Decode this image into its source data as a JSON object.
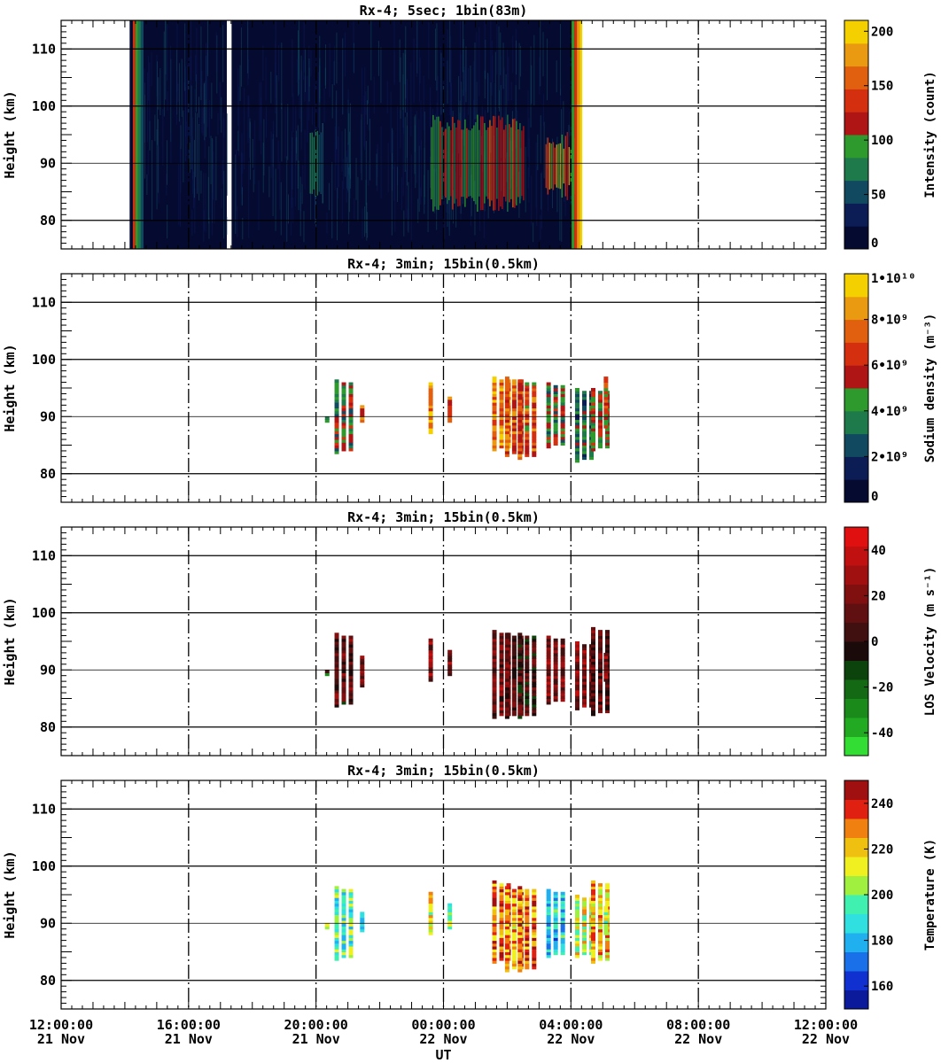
{
  "x_axis": {
    "label": "UT",
    "ticks": [
      {
        "time": "12:00:00",
        "date": "21 Nov"
      },
      {
        "time": "16:00:00",
        "date": "21 Nov"
      },
      {
        "time": "20:00:00",
        "date": "21 Nov"
      },
      {
        "time": "00:00:00",
        "date": "22 Nov"
      },
      {
        "time": "04:00:00",
        "date": "22 Nov"
      },
      {
        "time": "08:00:00",
        "date": "22 Nov"
      },
      {
        "time": "12:00:00",
        "date": "22 Nov"
      }
    ]
  },
  "chart_data": [
    {
      "type": "heatmap",
      "title": "Rx-4;  5sec; 1bin(83m)",
      "ylabel": "Height (km)",
      "ylim": [
        75,
        115
      ],
      "xlim_hours_ut": [
        12,
        36
      ],
      "y_ticks": [
        "110",
        "100",
        "90",
        "80"
      ],
      "colorbar": {
        "label": "Intensity (count)",
        "range": [
          0,
          210
        ],
        "ticks": [
          "200",
          "150",
          "100",
          "50",
          "0"
        ],
        "colors": [
          "#050a30",
          "#0c1c55",
          "#114a60",
          "#1e7a4a",
          "#2e9a2e",
          "#b01515",
          "#d43010",
          "#e06010",
          "#ea9a10",
          "#f5d000"
        ]
      },
      "data_windows_ut_hours": [
        [
          14.15,
          17.2
        ],
        [
          17.35,
          28.35
        ]
      ],
      "layer_blocks": [
        {
          "x0": 19.8,
          "x1": 20.2,
          "y0": 84,
          "y1": 96,
          "level": 0.45
        },
        {
          "x0": 23.6,
          "x1": 26.5,
          "y0": 83,
          "y1": 97,
          "level": 0.6
        },
        {
          "x0": 27.2,
          "x1": 28.2,
          "y0": 85,
          "y1": 94,
          "level": 0.75
        }
      ]
    },
    {
      "type": "heatmap",
      "title": "Rx-4; 3min; 15bin(0.5km)",
      "ylabel": "Height (km)",
      "ylim": [
        75,
        115
      ],
      "y_ticks": [
        "110",
        "100",
        "90",
        "80"
      ],
      "colorbar": {
        "label": "Sodium density (m⁻³)",
        "range": [
          0,
          10000000000.0
        ],
        "ticks": [
          "1•10¹⁰",
          "8•10⁹",
          "6•10⁹",
          "4•10⁹",
          "2•10⁹",
          "0"
        ],
        "colors": [
          "#050a30",
          "#0c1c55",
          "#114a60",
          "#1e7a4a",
          "#2e9a2e",
          "#b01515",
          "#d43010",
          "#e06010",
          "#ea9a10",
          "#f5d000"
        ]
      },
      "columns": [
        {
          "t": 20.35,
          "h0": 89,
          "h1": 90,
          "v": 0.45
        },
        {
          "t": 20.65,
          "h0": 83.5,
          "h1": 96.5,
          "v": 0.45
        },
        {
          "t": 21.45,
          "h0": 89,
          "h1": 92,
          "v": 0.7
        },
        {
          "t": 23.6,
          "h0": 87,
          "h1": 96,
          "v": 0.85
        },
        {
          "t": 24.2,
          "h0": 89,
          "h1": 93.5,
          "v": 0.7
        },
        {
          "t": 25.6,
          "h0": 84,
          "h1": 97,
          "v": 0.8
        },
        {
          "t": 26.0,
          "h0": 83,
          "h1": 97,
          "v": 0.7
        },
        {
          "t": 26.4,
          "h0": 82.5,
          "h1": 96.5,
          "v": 0.65
        },
        {
          "t": 27.3,
          "h0": 84.5,
          "h1": 96,
          "v": 0.45
        },
        {
          "t": 28.2,
          "h0": 82,
          "h1": 95,
          "v": 0.35
        },
        {
          "t": 28.7,
          "h0": 84,
          "h1": 95,
          "v": 0.5
        },
        {
          "t": 29.1,
          "h0": 88,
          "h1": 97,
          "v": 0.6
        }
      ]
    },
    {
      "type": "heatmap",
      "title": "Rx-4; 3min; 15bin(0.5km)",
      "ylabel": "Height (km)",
      "ylim": [
        75,
        115
      ],
      "y_ticks": [
        "110",
        "100",
        "90",
        "80"
      ],
      "colorbar": {
        "label": "LOS Velocity (m s⁻¹)",
        "range": [
          -50,
          50
        ],
        "ticks": [
          "40",
          "20",
          "0",
          "-20",
          "-40"
        ],
        "colors": [
          "#33dd33",
          "#22aa22",
          "#1a8a1a",
          "#146a14",
          "#0c420c",
          "#1a0a0a",
          "#401010",
          "#601010",
          "#801010",
          "#a01010",
          "#c01010",
          "#e01010"
        ]
      },
      "columns": [
        {
          "t": 20.35,
          "h0": 89,
          "h1": 90,
          "v": 0.4
        },
        {
          "t": 20.65,
          "h0": 83.5,
          "h1": 96.5,
          "v": 0.6
        },
        {
          "t": 21.45,
          "h0": 87,
          "h1": 92.5,
          "v": 0.7
        },
        {
          "t": 23.6,
          "h0": 88,
          "h1": 95.5,
          "v": 0.7
        },
        {
          "t": 24.2,
          "h0": 89,
          "h1": 93.5,
          "v": 0.7
        },
        {
          "t": 25.6,
          "h0": 81.5,
          "h1": 97,
          "v": 0.65
        },
        {
          "t": 26.0,
          "h0": 81.5,
          "h1": 96.5,
          "v": 0.6
        },
        {
          "t": 26.4,
          "h0": 81.5,
          "h1": 96.5,
          "v": 0.55
        },
        {
          "t": 27.3,
          "h0": 84,
          "h1": 96,
          "v": 0.7
        },
        {
          "t": 28.2,
          "h0": 83,
          "h1": 95,
          "v": 0.7
        },
        {
          "t": 28.7,
          "h0": 82,
          "h1": 97.5,
          "v": 0.6
        },
        {
          "t": 29.1,
          "h0": 88,
          "h1": 93,
          "v": 0.7
        }
      ]
    },
    {
      "type": "heatmap",
      "title": "Rx-4; 3min; 15bin(0.5km)",
      "ylabel": "Height (km)",
      "ylim": [
        75,
        115
      ],
      "y_ticks": [
        "110",
        "100",
        "90",
        "80"
      ],
      "colorbar": {
        "label": "Temperature (K)",
        "range": [
          150,
          250
        ],
        "ticks": [
          "240",
          "220",
          "200",
          "180",
          "160"
        ],
        "colors": [
          "#0a1a9a",
          "#1030d0",
          "#1a70e8",
          "#20b0f0",
          "#30e0e0",
          "#40f0b0",
          "#a0f040",
          "#f0f020",
          "#f0c010",
          "#f08010",
          "#e02010",
          "#a01010"
        ]
      },
      "columns": [
        {
          "t": 20.35,
          "h0": 89,
          "h1": 90,
          "v": 0.6
        },
        {
          "t": 20.65,
          "h0": 83.5,
          "h1": 96.5,
          "v": 0.45
        },
        {
          "t": 21.45,
          "h0": 88.5,
          "h1": 92,
          "v": 0.4
        },
        {
          "t": 23.6,
          "h0": 88,
          "h1": 95.5,
          "v": 0.65
        },
        {
          "t": 24.2,
          "h0": 89,
          "h1": 93.5,
          "v": 0.5
        },
        {
          "t": 25.6,
          "h0": 83,
          "h1": 97.5,
          "v": 0.8
        },
        {
          "t": 26.0,
          "h0": 81.5,
          "h1": 96.5,
          "v": 0.75
        },
        {
          "t": 26.4,
          "h0": 81.5,
          "h1": 96.5,
          "v": 0.8
        },
        {
          "t": 27.3,
          "h0": 84,
          "h1": 96,
          "v": 0.35
        },
        {
          "t": 28.2,
          "h0": 84,
          "h1": 95,
          "v": 0.6
        },
        {
          "t": 28.7,
          "h0": 83,
          "h1": 97.5,
          "v": 0.7
        },
        {
          "t": 29.1,
          "h0": 88,
          "h1": 93,
          "v": 0.55
        }
      ]
    }
  ]
}
